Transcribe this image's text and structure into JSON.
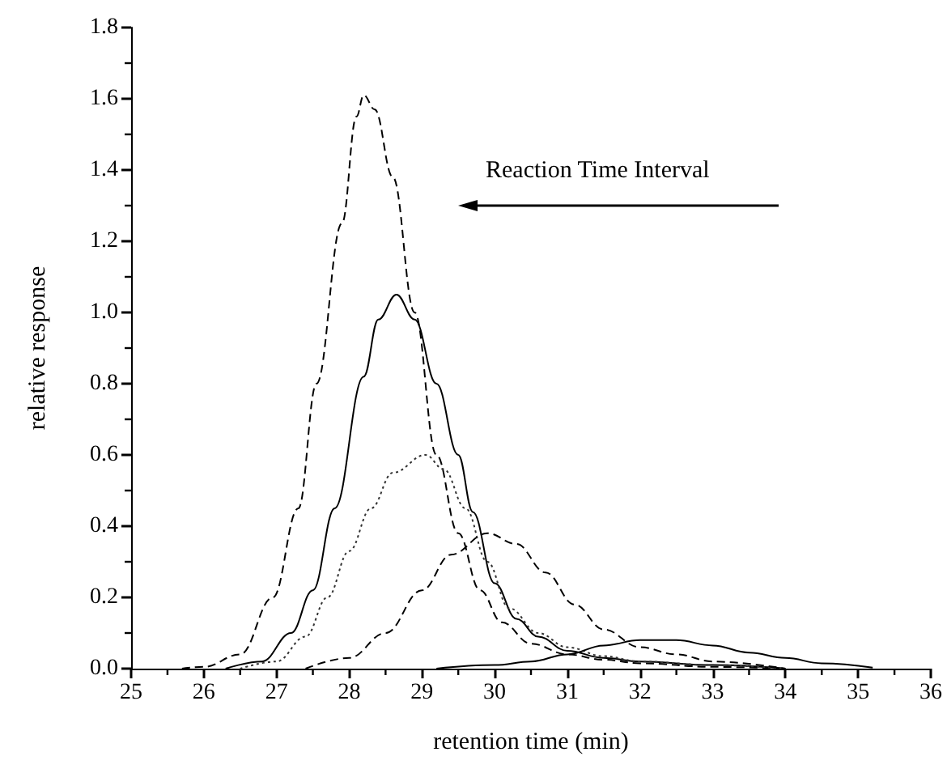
{
  "chart_data": {
    "type": "line",
    "xlabel": "retention time (min)",
    "ylabel": "relative response",
    "annotations": [
      "Reaction Time Interval"
    ],
    "xlim": [
      25,
      36
    ],
    "xticks": [
      25,
      26,
      27,
      28,
      29,
      30,
      31,
      32,
      33,
      34,
      35,
      36
    ],
    "ylim": [
      0,
      1.8
    ],
    "yticks": [
      {
        "value": 0,
        "label": "0.0"
      },
      {
        "value": 0.2,
        "label": "0.2"
      },
      {
        "value": 0.4,
        "label": "0.4"
      },
      {
        "value": 0.6,
        "label": "0.6"
      },
      {
        "value": 0.8,
        "label": "0.8"
      },
      {
        "value": 1,
        "label": "1.0"
      },
      {
        "value": 1.2,
        "label": "1.2"
      },
      {
        "value": 1.4,
        "label": "1.4"
      },
      {
        "value": 1.6,
        "label": "1.6"
      },
      {
        "value": 1.8,
        "label": "1.8"
      }
    ],
    "grid": false,
    "marker": "none",
    "series": [
      {
        "color": "#000000",
        "line_style": "dashed",
        "x": [
          25.7,
          26.0,
          26.5,
          26.95,
          27.3,
          27.55,
          27.9,
          28.1,
          28.2,
          28.35,
          28.6,
          28.9,
          29.2,
          29.5,
          29.8,
          30.1,
          30.5,
          31.0,
          31.5,
          32.0,
          33.0,
          34.0
        ],
        "values": [
          0,
          0.005,
          0.04,
          0.2,
          0.45,
          0.8,
          1.25,
          1.55,
          1.61,
          1.57,
          1.38,
          1.0,
          0.6,
          0.38,
          0.22,
          0.13,
          0.07,
          0.04,
          0.025,
          0.015,
          0.005,
          0
        ]
      },
      {
        "color": "#000000",
        "line_style": "solid",
        "x": [
          26.3,
          26.8,
          27.2,
          27.5,
          27.8,
          28.2,
          28.4,
          28.65,
          28.9,
          29.2,
          29.5,
          29.7,
          30.0,
          30.3,
          30.6,
          31.0,
          31.5,
          32.0,
          33.0,
          34.0
        ],
        "values": [
          0,
          0.02,
          0.1,
          0.22,
          0.45,
          0.82,
          0.98,
          1.05,
          0.98,
          0.8,
          0.6,
          0.44,
          0.24,
          0.14,
          0.09,
          0.05,
          0.03,
          0.02,
          0.01,
          0
        ]
      },
      {
        "color": "#333333",
        "line_style": "dotted",
        "x": [
          26.5,
          27.0,
          27.4,
          27.7,
          28.0,
          28.3,
          28.6,
          29.05,
          29.3,
          29.6,
          29.9,
          30.2,
          30.6,
          31.0,
          31.5,
          32.0,
          33.0,
          34.0
        ],
        "values": [
          0,
          0.02,
          0.09,
          0.2,
          0.33,
          0.45,
          0.55,
          0.6,
          0.56,
          0.45,
          0.3,
          0.17,
          0.1,
          0.06,
          0.035,
          0.02,
          0.01,
          0
        ]
      },
      {
        "color": "#000000",
        "line_style": "dashed",
        "x": [
          27.4,
          28.0,
          28.5,
          29.0,
          29.4,
          29.9,
          30.3,
          30.7,
          31.1,
          31.5,
          32.0,
          32.5,
          33.0,
          34.0
        ],
        "values": [
          0,
          0.03,
          0.1,
          0.22,
          0.32,
          0.38,
          0.35,
          0.27,
          0.18,
          0.11,
          0.06,
          0.04,
          0.02,
          0
        ]
      },
      {
        "color": "#000000",
        "line_style": "solid",
        "x": [
          29.2,
          30.0,
          30.5,
          31.0,
          31.5,
          32.0,
          32.5,
          33.0,
          33.5,
          34.0,
          34.5,
          35.2
        ],
        "values": [
          0,
          0.01,
          0.02,
          0.04,
          0.065,
          0.08,
          0.08,
          0.065,
          0.045,
          0.03,
          0.015,
          0.003
        ]
      }
    ]
  }
}
